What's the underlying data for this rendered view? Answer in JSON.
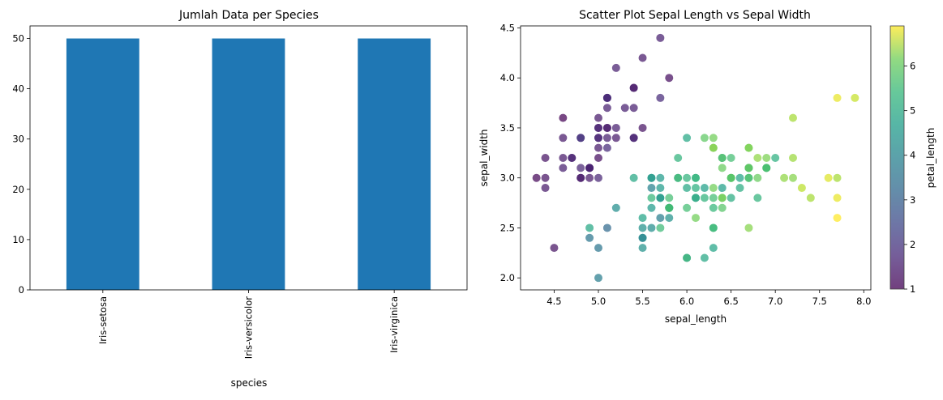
{
  "chart_data": [
    {
      "type": "bar",
      "title": "Jumlah Data per Species",
      "xlabel": "species",
      "ylabel": "",
      "categories": [
        "Iris-setosa",
        "Iris-versicolor",
        "Iris-virginica"
      ],
      "values": [
        50,
        50,
        50
      ],
      "ylim": [
        0,
        52.5
      ],
      "yticks": [
        0,
        10,
        20,
        30,
        40,
        50
      ],
      "bar_color": "#1f77b4",
      "grid": false
    },
    {
      "type": "scatter",
      "title": "Scatter Plot Sepal Length vs Sepal Width",
      "xlabel": "sepal_length",
      "ylabel": "sepal_width",
      "xlim": [
        4.12,
        8.08
      ],
      "ylim": [
        1.88,
        4.52
      ],
      "xticks": [
        4.5,
        5.0,
        5.5,
        6.0,
        6.5,
        7.0,
        7.5,
        8.0
      ],
      "yticks": [
        2.0,
        2.5,
        3.0,
        3.5,
        4.0,
        4.5
      ],
      "colormap": "viridis",
      "colorbar": {
        "label": "petal_length",
        "range": [
          1,
          6.9
        ],
        "ticks": [
          1,
          2,
          3,
          4,
          5,
          6
        ]
      },
      "grid": false,
      "points": [
        [
          5.1,
          3.5,
          1.4
        ],
        [
          4.9,
          3.0,
          1.4
        ],
        [
          4.7,
          3.2,
          1.3
        ],
        [
          4.6,
          3.1,
          1.5
        ],
        [
          5.0,
          3.6,
          1.4
        ],
        [
          5.4,
          3.9,
          1.7
        ],
        [
          4.6,
          3.4,
          1.4
        ],
        [
          5.0,
          3.4,
          1.5
        ],
        [
          4.4,
          2.9,
          1.4
        ],
        [
          4.9,
          3.1,
          1.5
        ],
        [
          5.4,
          3.7,
          1.5
        ],
        [
          4.8,
          3.4,
          1.6
        ],
        [
          4.8,
          3.0,
          1.4
        ],
        [
          4.3,
          3.0,
          1.1
        ],
        [
          5.8,
          4.0,
          1.2
        ],
        [
          5.7,
          4.4,
          1.5
        ],
        [
          5.4,
          3.9,
          1.3
        ],
        [
          5.1,
          3.5,
          1.4
        ],
        [
          5.7,
          3.8,
          1.7
        ],
        [
          5.1,
          3.8,
          1.5
        ],
        [
          5.4,
          3.4,
          1.7
        ],
        [
          5.1,
          3.7,
          1.5
        ],
        [
          4.6,
          3.6,
          1.0
        ],
        [
          5.1,
          3.3,
          1.7
        ],
        [
          4.8,
          3.4,
          1.9
        ],
        [
          5.0,
          3.0,
          1.6
        ],
        [
          5.0,
          3.4,
          1.6
        ],
        [
          5.2,
          3.5,
          1.5
        ],
        [
          5.2,
          3.4,
          1.4
        ],
        [
          4.7,
          3.2,
          1.6
        ],
        [
          4.8,
          3.1,
          1.6
        ],
        [
          5.4,
          3.4,
          1.5
        ],
        [
          5.2,
          4.1,
          1.5
        ],
        [
          5.5,
          4.2,
          1.4
        ],
        [
          4.9,
          3.1,
          1.5
        ],
        [
          5.0,
          3.2,
          1.2
        ],
        [
          5.5,
          3.5,
          1.3
        ],
        [
          4.9,
          3.1,
          1.5
        ],
        [
          4.4,
          3.0,
          1.3
        ],
        [
          5.1,
          3.4,
          1.5
        ],
        [
          5.0,
          3.5,
          1.3
        ],
        [
          4.5,
          2.3,
          1.3
        ],
        [
          4.4,
          3.2,
          1.3
        ],
        [
          5.0,
          3.5,
          1.6
        ],
        [
          5.1,
          3.8,
          1.9
        ],
        [
          4.8,
          3.0,
          1.4
        ],
        [
          5.1,
          3.8,
          1.6
        ],
        [
          4.6,
          3.2,
          1.4
        ],
        [
          5.3,
          3.7,
          1.5
        ],
        [
          5.0,
          3.3,
          1.4
        ],
        [
          7.0,
          3.2,
          4.7
        ],
        [
          6.4,
          3.2,
          4.5
        ],
        [
          6.9,
          3.1,
          4.9
        ],
        [
          5.5,
          2.3,
          4.0
        ],
        [
          6.5,
          2.8,
          4.6
        ],
        [
          5.7,
          2.8,
          4.5
        ],
        [
          6.3,
          3.3,
          4.7
        ],
        [
          4.9,
          2.4,
          3.3
        ],
        [
          6.6,
          2.9,
          4.6
        ],
        [
          5.2,
          2.7,
          3.9
        ],
        [
          5.0,
          2.0,
          3.5
        ],
        [
          5.9,
          3.0,
          4.2
        ],
        [
          6.0,
          2.2,
          4.0
        ],
        [
          6.1,
          2.9,
          4.7
        ],
        [
          5.6,
          2.9,
          3.6
        ],
        [
          6.7,
          3.1,
          4.4
        ],
        [
          5.6,
          3.0,
          4.5
        ],
        [
          5.8,
          2.7,
          4.1
        ],
        [
          6.2,
          2.2,
          4.5
        ],
        [
          5.6,
          2.5,
          3.9
        ],
        [
          5.9,
          3.2,
          4.8
        ],
        [
          6.1,
          2.8,
          4.0
        ],
        [
          6.3,
          2.5,
          4.9
        ],
        [
          6.1,
          2.8,
          4.7
        ],
        [
          6.4,
          2.9,
          4.3
        ],
        [
          6.6,
          3.0,
          4.4
        ],
        [
          6.8,
          2.8,
          4.8
        ],
        [
          6.7,
          3.0,
          5.0
        ],
        [
          6.0,
          2.9,
          4.5
        ],
        [
          5.7,
          2.6,
          3.5
        ],
        [
          5.5,
          2.4,
          3.8
        ],
        [
          5.5,
          2.4,
          3.7
        ],
        [
          5.8,
          2.7,
          3.9
        ],
        [
          6.0,
          2.7,
          5.1
        ],
        [
          5.4,
          3.0,
          4.5
        ],
        [
          6.0,
          3.4,
          4.5
        ],
        [
          6.7,
          3.1,
          4.7
        ],
        [
          6.3,
          2.3,
          4.4
        ],
        [
          5.6,
          3.0,
          4.1
        ],
        [
          5.5,
          2.5,
          4.0
        ],
        [
          5.5,
          2.6,
          4.4
        ],
        [
          6.1,
          3.0,
          4.6
        ],
        [
          5.8,
          2.6,
          4.0
        ],
        [
          5.0,
          2.3,
          3.3
        ],
        [
          5.6,
          2.7,
          4.2
        ],
        [
          5.7,
          3.0,
          4.2
        ],
        [
          5.7,
          2.9,
          4.2
        ],
        [
          6.2,
          2.9,
          4.3
        ],
        [
          5.1,
          2.5,
          3.0
        ],
        [
          5.7,
          2.8,
          4.1
        ],
        [
          6.3,
          3.3,
          6.0
        ],
        [
          5.8,
          2.7,
          5.1
        ],
        [
          7.1,
          3.0,
          5.9
        ],
        [
          6.3,
          2.9,
          5.6
        ],
        [
          6.5,
          3.0,
          5.8
        ],
        [
          7.6,
          3.0,
          6.6
        ],
        [
          4.9,
          2.5,
          4.5
        ],
        [
          7.3,
          2.9,
          6.3
        ],
        [
          6.7,
          2.5,
          5.8
        ],
        [
          7.2,
          3.6,
          6.1
        ],
        [
          6.5,
          3.2,
          5.1
        ],
        [
          6.4,
          2.7,
          5.3
        ],
        [
          6.8,
          3.0,
          5.5
        ],
        [
          5.7,
          2.5,
          5.0
        ],
        [
          5.8,
          2.8,
          5.1
        ],
        [
          6.4,
          3.2,
          5.3
        ],
        [
          6.5,
          3.0,
          5.5
        ],
        [
          7.7,
          3.8,
          6.7
        ],
        [
          7.7,
          2.6,
          6.9
        ],
        [
          6.0,
          2.2,
          5.0
        ],
        [
          6.9,
          3.2,
          5.7
        ],
        [
          5.6,
          2.8,
          4.9
        ],
        [
          7.7,
          2.8,
          6.7
        ],
        [
          6.3,
          2.7,
          4.9
        ],
        [
          6.7,
          3.3,
          5.7
        ],
        [
          7.2,
          3.2,
          6.0
        ],
        [
          6.2,
          2.8,
          4.8
        ],
        [
          6.1,
          3.0,
          4.9
        ],
        [
          6.4,
          2.8,
          5.6
        ],
        [
          7.2,
          3.0,
          5.8
        ],
        [
          7.4,
          2.8,
          6.1
        ],
        [
          7.9,
          3.8,
          6.4
        ],
        [
          6.4,
          2.8,
          5.6
        ],
        [
          6.3,
          2.8,
          5.1
        ],
        [
          6.1,
          2.6,
          5.6
        ],
        [
          7.7,
          3.0,
          6.1
        ],
        [
          6.3,
          3.4,
          5.6
        ],
        [
          6.4,
          3.1,
          5.5
        ],
        [
          6.0,
          3.0,
          4.8
        ],
        [
          6.9,
          3.1,
          5.4
        ],
        [
          6.7,
          3.1,
          5.6
        ],
        [
          6.9,
          3.1,
          5.1
        ],
        [
          5.8,
          2.7,
          5.1
        ],
        [
          6.8,
          3.2,
          5.9
        ],
        [
          6.7,
          3.3,
          5.7
        ],
        [
          6.7,
          3.0,
          5.2
        ],
        [
          6.3,
          2.5,
          5.0
        ],
        [
          6.5,
          3.0,
          5.2
        ],
        [
          6.2,
          3.4,
          5.4
        ],
        [
          5.9,
          3.0,
          5.1
        ]
      ]
    }
  ]
}
